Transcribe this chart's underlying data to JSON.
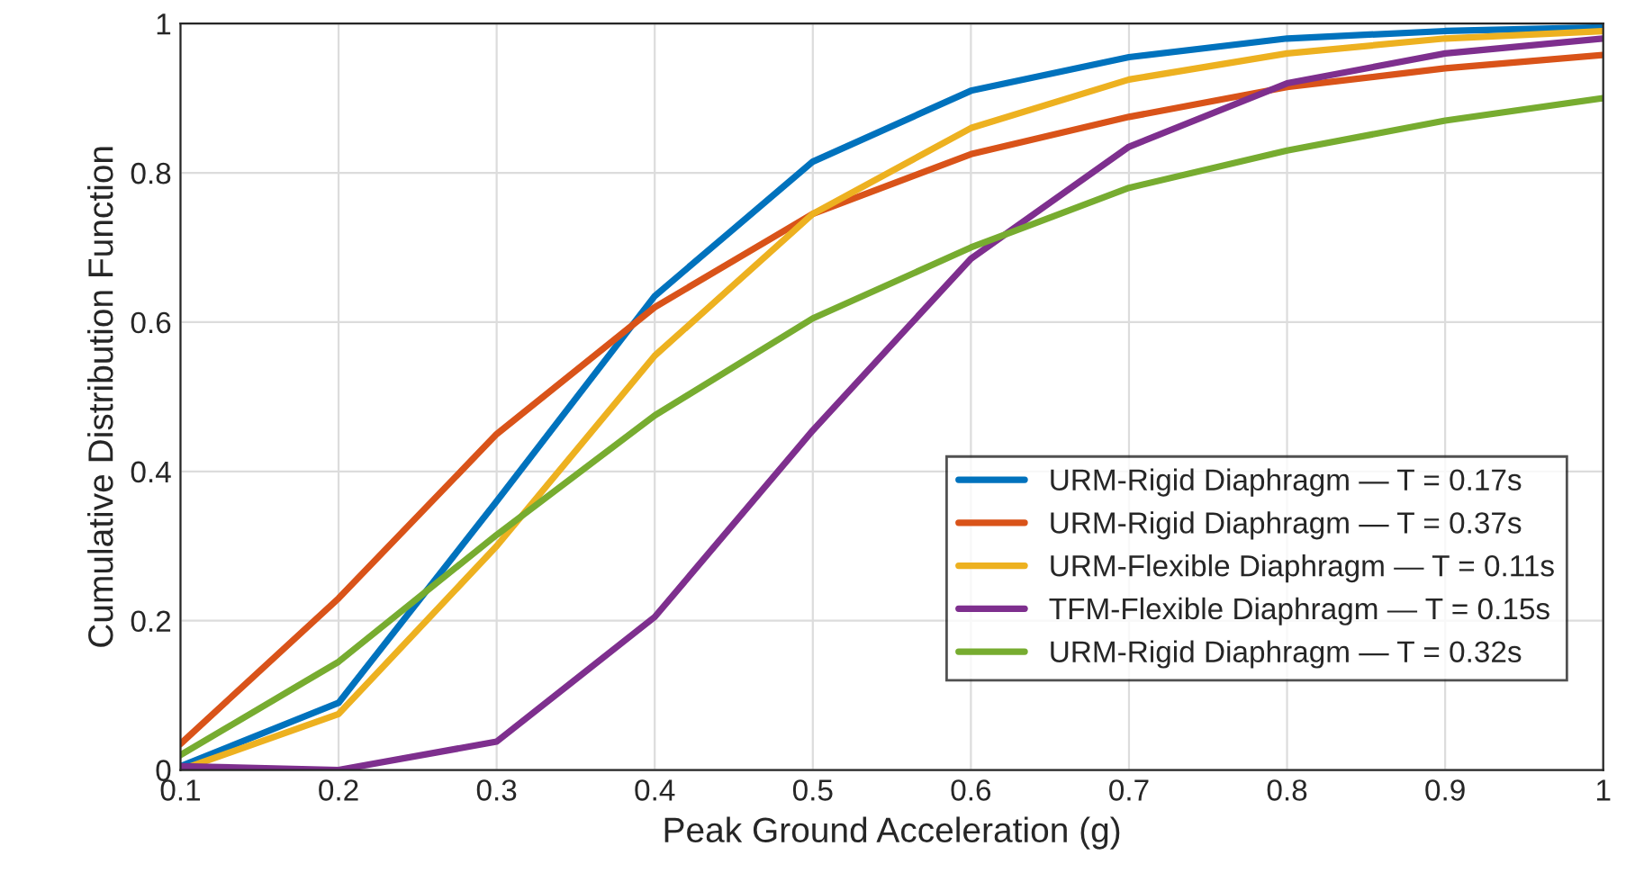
{
  "chart_data": {
    "type": "line",
    "xlabel": "Peak Ground Acceleration (g)",
    "ylabel": "Cumulative Distribution Function",
    "x": [
      0.1,
      0.2,
      0.3,
      0.4,
      0.5,
      0.6,
      0.7,
      0.8,
      0.9,
      1
    ],
    "series": [
      {
        "name": "URM-Rigid Diaphragm — T = 0.17s",
        "color": "#0072bd",
        "values": [
          0.005,
          0.09,
          0.36,
          0.635,
          0.815,
          0.91,
          0.955,
          0.98,
          0.99,
          0.995
        ]
      },
      {
        "name": "URM-Rigid Diaphragm — T = 0.37s",
        "color": "#d95319",
        "values": [
          0.035,
          0.23,
          0.45,
          0.62,
          0.745,
          0.825,
          0.875,
          0.915,
          0.94,
          0.958
        ]
      },
      {
        "name": "URM-Flexible Diaphragm — T = 0.11s",
        "color": "#edb120",
        "values": [
          0.0,
          0.075,
          0.3,
          0.555,
          0.745,
          0.86,
          0.925,
          0.96,
          0.98,
          0.99
        ]
      },
      {
        "name": "TFM-Flexible Diaphragm — T = 0.15s",
        "color": "#7e2f8e",
        "values": [
          0.005,
          0.0,
          0.038,
          0.205,
          0.455,
          0.685,
          0.835,
          0.92,
          0.96,
          0.98
        ]
      },
      {
        "name": "URM-Rigid Diaphragm — T = 0.32s",
        "color": "#77ac30",
        "values": [
          0.02,
          0.145,
          0.315,
          0.475,
          0.605,
          0.7,
          0.78,
          0.83,
          0.87,
          0.9
        ]
      }
    ],
    "xlim": [
      0.1,
      1
    ],
    "xticks": [
      0.1,
      0.2,
      0.3,
      0.4,
      0.5,
      0.6,
      0.7,
      0.8,
      0.9,
      1
    ],
    "ylim": [
      0,
      1
    ],
    "yticks": [
      0,
      0.2,
      0.4,
      0.6,
      0.8,
      1
    ],
    "grid": true,
    "legend": "lower right",
    "marker": "none",
    "line_style": "solid"
  }
}
